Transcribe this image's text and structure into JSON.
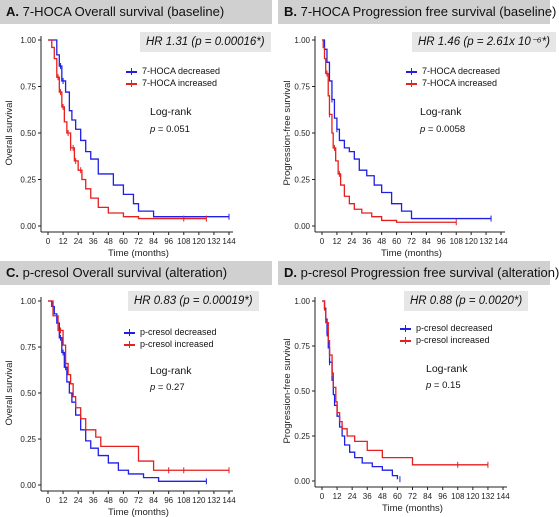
{
  "chart_data": [
    {
      "type": "line",
      "panel_label": "A.",
      "title": "7-HOCA Overall survival (baseline)",
      "hr_text": "HR 1.31 (p = 0.00016*)",
      "xlabel": "Time (months)",
      "ylabel": "Overall survival",
      "xlim": [
        0,
        144
      ],
      "ylim": [
        0,
        1
      ],
      "xticks": [
        0,
        12,
        24,
        36,
        48,
        60,
        72,
        84,
        96,
        108,
        120,
        132,
        144
      ],
      "yticks": [
        "0.00",
        "0.25",
        "0.50",
        "0.75",
        "1.00"
      ],
      "test_label": "Log-rank",
      "p_value": "0.051",
      "legend_position": "top-right",
      "series": [
        {
          "name": "7-HOCA decreased",
          "color": "#1f1fe6",
          "points": [
            [
              0,
              1.0
            ],
            [
              6,
              1.0
            ],
            [
              7,
              0.92
            ],
            [
              9,
              0.86
            ],
            [
              11,
              0.78
            ],
            [
              14,
              0.72
            ],
            [
              17,
              0.62
            ],
            [
              19,
              0.57
            ],
            [
              22,
              0.52
            ],
            [
              26,
              0.46
            ],
            [
              30,
              0.4
            ],
            [
              34,
              0.36
            ],
            [
              40,
              0.28
            ],
            [
              52,
              0.22
            ],
            [
              60,
              0.17
            ],
            [
              68,
              0.12
            ],
            [
              72,
              0.08
            ],
            [
              84,
              0.05
            ],
            [
              144,
              0.05
            ]
          ],
          "censor": [
            10,
            12,
            144
          ]
        },
        {
          "name": "7-HOCA increased",
          "color": "#e61f1f",
          "points": [
            [
              0,
              1.0
            ],
            [
              3,
              0.96
            ],
            [
              5,
              0.9
            ],
            [
              7,
              0.8
            ],
            [
              9,
              0.72
            ],
            [
              11,
              0.64
            ],
            [
              13,
              0.56
            ],
            [
              15,
              0.5
            ],
            [
              18,
              0.42
            ],
            [
              21,
              0.35
            ],
            [
              24,
              0.3
            ],
            [
              27,
              0.25
            ],
            [
              30,
              0.2
            ],
            [
              34,
              0.15
            ],
            [
              40,
              0.1
            ],
            [
              48,
              0.07
            ],
            [
              60,
              0.05
            ],
            [
              72,
              0.04
            ],
            [
              126,
              0.04
            ]
          ],
          "censor": [
            8,
            10,
            12,
            16,
            18,
            20,
            22,
            26,
            108,
            126
          ]
        }
      ]
    },
    {
      "type": "line",
      "panel_label": "B.",
      "title": "7-HOCA Progression free survival (baseline)",
      "hr_text": "HR 1.46 (p = 2.61x 10⁻⁶*)",
      "xlabel": "Time (months)",
      "ylabel": "Progression-free survival",
      "xlim": [
        0,
        144
      ],
      "ylim": [
        0,
        1
      ],
      "xticks": [
        0,
        12,
        24,
        36,
        48,
        60,
        72,
        84,
        96,
        108,
        120,
        132,
        144
      ],
      "yticks": [
        "0.00",
        "0.25",
        "0.50",
        "0.75",
        "1.00"
      ],
      "test_label": "Log-rank",
      "p_value": "0.0058",
      "legend_position": "top-right",
      "series": [
        {
          "name": "7-HOCA decreased",
          "color": "#1f1fe6",
          "points": [
            [
              0,
              1.0
            ],
            [
              2,
              0.95
            ],
            [
              4,
              0.88
            ],
            [
              6,
              0.78
            ],
            [
              8,
              0.68
            ],
            [
              10,
              0.58
            ],
            [
              12,
              0.52
            ],
            [
              14,
              0.46
            ],
            [
              18,
              0.42
            ],
            [
              22,
              0.4
            ],
            [
              26,
              0.36
            ],
            [
              30,
              0.3
            ],
            [
              36,
              0.27
            ],
            [
              42,
              0.22
            ],
            [
              48,
              0.18
            ],
            [
              56,
              0.12
            ],
            [
              64,
              0.08
            ],
            [
              72,
              0.04
            ],
            [
              136,
              0.04
            ]
          ],
          "censor": [
            8,
            12,
            136
          ]
        },
        {
          "name": "7-HOCA increased",
          "color": "#e61f1f",
          "points": [
            [
              0,
              1.0
            ],
            [
              1,
              0.96
            ],
            [
              2,
              0.9
            ],
            [
              3,
              0.82
            ],
            [
              5,
              0.7
            ],
            [
              6,
              0.6
            ],
            [
              8,
              0.5
            ],
            [
              9,
              0.42
            ],
            [
              11,
              0.35
            ],
            [
              13,
              0.28
            ],
            [
              15,
              0.22
            ],
            [
              18,
              0.16
            ],
            [
              22,
              0.12
            ],
            [
              26,
              0.09
            ],
            [
              32,
              0.07
            ],
            [
              40,
              0.05
            ],
            [
              48,
              0.03
            ],
            [
              60,
              0.02
            ],
            [
              108,
              0.02
            ]
          ],
          "censor": [
            4,
            6,
            10,
            14,
            108
          ]
        }
      ]
    },
    {
      "type": "line",
      "panel_label": "C.",
      "title": "p-cresol Overall survival (alteration)",
      "hr_text": "HR 0.83 (p = 0.00019*)",
      "xlabel": "Time (months)",
      "ylabel": "Overall survival",
      "xlim": [
        0,
        144
      ],
      "ylim": [
        0,
        1
      ],
      "xticks": [
        0,
        12,
        24,
        36,
        48,
        60,
        72,
        84,
        96,
        108,
        120,
        132,
        144
      ],
      "yticks": [
        "0.00",
        "0.25",
        "0.50",
        "0.75",
        "1.00"
      ],
      "test_label": "Log-rank",
      "p_value": "0.27",
      "legend_position": "top-right",
      "series": [
        {
          "name": "p-cresol decreased",
          "color": "#1f1fe6",
          "points": [
            [
              0,
              1.0
            ],
            [
              3,
              0.97
            ],
            [
              5,
              0.93
            ],
            [
              7,
              0.88
            ],
            [
              9,
              0.8
            ],
            [
              11,
              0.72
            ],
            [
              13,
              0.64
            ],
            [
              15,
              0.56
            ],
            [
              17,
              0.5
            ],
            [
              19,
              0.45
            ],
            [
              22,
              0.38
            ],
            [
              26,
              0.3
            ],
            [
              30,
              0.24
            ],
            [
              34,
              0.2
            ],
            [
              40,
              0.16
            ],
            [
              48,
              0.12
            ],
            [
              56,
              0.08
            ],
            [
              64,
              0.06
            ],
            [
              76,
              0.04
            ],
            [
              88,
              0.02
            ],
            [
              126,
              0.02
            ]
          ],
          "censor": [
            10,
            12,
            14,
            126
          ]
        },
        {
          "name": "p-cresol increased",
          "color": "#e61f1f",
          "points": [
            [
              0,
              1.0
            ],
            [
              4,
              0.92
            ],
            [
              8,
              0.84
            ],
            [
              12,
              0.76
            ],
            [
              14,
              0.66
            ],
            [
              16,
              0.6
            ],
            [
              18,
              0.55
            ],
            [
              20,
              0.48
            ],
            [
              22,
              0.42
            ],
            [
              26,
              0.36
            ],
            [
              30,
              0.3
            ],
            [
              38,
              0.26
            ],
            [
              42,
              0.21
            ],
            [
              72,
              0.13
            ],
            [
              84,
              0.08
            ],
            [
              144,
              0.08
            ]
          ],
          "censor": [
            10,
            14,
            96,
            108,
            144
          ]
        }
      ]
    },
    {
      "type": "line",
      "panel_label": "D.",
      "title": "p-cresol Progression free survival (alteration)",
      "hr_text": "HR 0.88 (p = 0.0020*)",
      "xlabel": "Time (months)",
      "ylabel": "Progression-free survival",
      "xlim": [
        0,
        144
      ],
      "ylim": [
        0,
        1
      ],
      "xticks": [
        0,
        12,
        24,
        36,
        48,
        60,
        72,
        84,
        96,
        108,
        120,
        132,
        144
      ],
      "yticks": [
        "0.00",
        "0.25",
        "0.50",
        "0.75",
        "1.00"
      ],
      "test_label": "Log-rank",
      "p_value": "0.15",
      "legend_position": "top-right",
      "series": [
        {
          "name": "p-cresol decreased",
          "color": "#1f1fe6",
          "points": [
            [
              0,
              1.0
            ],
            [
              2,
              0.96
            ],
            [
              3,
              0.9
            ],
            [
              4,
              0.82
            ],
            [
              5,
              0.74
            ],
            [
              6,
              0.66
            ],
            [
              8,
              0.56
            ],
            [
              9,
              0.48
            ],
            [
              10,
              0.42
            ],
            [
              12,
              0.36
            ],
            [
              14,
              0.3
            ],
            [
              16,
              0.25
            ],
            [
              18,
              0.2
            ],
            [
              22,
              0.16
            ],
            [
              26,
              0.13
            ],
            [
              32,
              0.1
            ],
            [
              40,
              0.08
            ],
            [
              48,
              0.06
            ],
            [
              56,
              0.03
            ],
            [
              60,
              0.01
            ]
          ],
          "censor": [
            4,
            6,
            62
          ]
        },
        {
          "name": "p-cresol increased",
          "color": "#e61f1f",
          "points": [
            [
              0,
              1.0
            ],
            [
              2,
              0.95
            ],
            [
              3,
              0.88
            ],
            [
              5,
              0.78
            ],
            [
              6,
              0.7
            ],
            [
              8,
              0.6
            ],
            [
              9,
              0.52
            ],
            [
              11,
              0.44
            ],
            [
              12,
              0.38
            ],
            [
              14,
              0.33
            ],
            [
              16,
              0.29
            ],
            [
              20,
              0.25
            ],
            [
              26,
              0.22
            ],
            [
              36,
              0.17
            ],
            [
              48,
              0.13
            ],
            [
              72,
              0.09
            ],
            [
              132,
              0.09
            ]
          ],
          "censor": [
            6,
            8,
            108,
            132
          ]
        }
      ]
    }
  ]
}
